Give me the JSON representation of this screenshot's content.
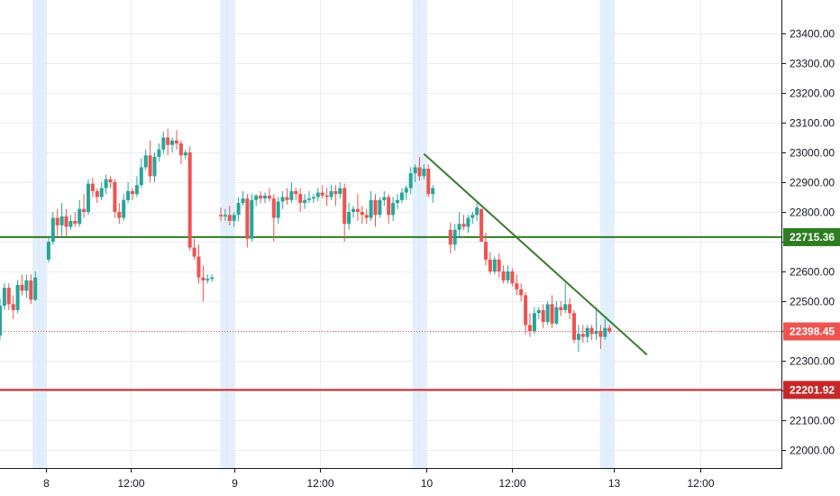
{
  "chart_data": {
    "type": "candlestick",
    "title": "",
    "xlabel": "",
    "ylabel": "",
    "ylim": [
      21900,
      23450
    ],
    "y_ticks": [
      22000,
      22100,
      22200,
      22300,
      22400,
      22500,
      22600,
      22700,
      22800,
      22900,
      23000,
      23100,
      23200,
      23300,
      23400
    ],
    "y_tick_labels": [
      "22000.00",
      "22100.00",
      "22200.00",
      "22300.00",
      "22400.00",
      "22500.00",
      "22600.00",
      "22700.00",
      "22800.00",
      "22900.00",
      "23000.00",
      "23100.00",
      "23200.00",
      "23300.00",
      "23400.00"
    ],
    "x_ticks": [
      {
        "label": "8",
        "t": 10.5
      },
      {
        "label": "12:00",
        "t": 29.5
      },
      {
        "label": "9",
        "t": 53
      },
      {
        "label": "12:00",
        "t": 72.5
      },
      {
        "label": "10",
        "t": 96.5
      },
      {
        "label": "12:00",
        "t": 116
      },
      {
        "label": "13",
        "t": 139
      },
      {
        "label": "12:00",
        "t": 158.5
      }
    ],
    "xlim": [
      0,
      176
    ],
    "session_bands": [
      9,
      51.5,
      95,
      137.5
    ],
    "up_color": "#26a69a",
    "down_color": "#ef5350",
    "candles": [
      [
        0,
        22385,
        22510,
        22370,
        22485
      ],
      [
        1,
        22485,
        22560,
        22470,
        22545
      ],
      [
        2,
        22545,
        22560,
        22470,
        22490
      ],
      [
        3,
        22490,
        22520,
        22440,
        22470
      ],
      [
        4,
        22470,
        22570,
        22460,
        22555
      ],
      [
        5,
        22555,
        22590,
        22520,
        22535
      ],
      [
        6,
        22535,
        22590,
        22510,
        22570
      ],
      [
        7,
        22570,
        22590,
        22490,
        22505
      ],
      [
        8,
        22505,
        22600,
        22500,
        22580
      ],
      [
        11,
        22640,
        22720,
        22630,
        22700
      ],
      [
        12,
        22700,
        22800,
        22690,
        22780
      ],
      [
        13,
        22780,
        22810,
        22720,
        22755
      ],
      [
        14,
        22755,
        22830,
        22720,
        22785
      ],
      [
        15,
        22785,
        22810,
        22720,
        22750
      ],
      [
        16,
        22750,
        22790,
        22740,
        22770
      ],
      [
        17,
        22770,
        22800,
        22750,
        22760
      ],
      [
        18,
        22760,
        22840,
        22750,
        22810
      ],
      [
        19,
        22810,
        22860,
        22780,
        22800
      ],
      [
        20,
        22800,
        22910,
        22790,
        22895
      ],
      [
        21,
        22895,
        22915,
        22850,
        22870
      ],
      [
        22,
        22870,
        22880,
        22830,
        22850
      ],
      [
        23,
        22850,
        22900,
        22840,
        22880
      ],
      [
        24,
        22880,
        22925,
        22860,
        22910
      ],
      [
        25,
        22910,
        22920,
        22880,
        22900
      ],
      [
        26,
        22900,
        22910,
        22780,
        22800
      ],
      [
        27,
        22800,
        22830,
        22760,
        22780
      ],
      [
        28,
        22780,
        22860,
        22770,
        22840
      ],
      [
        29,
        22840,
        22900,
        22830,
        22870
      ],
      [
        30,
        22870,
        22880,
        22840,
        22860
      ],
      [
        31,
        22860,
        22920,
        22850,
        22890
      ],
      [
        32,
        22890,
        22980,
        22880,
        22950
      ],
      [
        33,
        22950,
        23010,
        22940,
        22990
      ],
      [
        34,
        22990,
        23040,
        22900,
        22920
      ],
      [
        35,
        22920,
        23000,
        22900,
        22985
      ],
      [
        36,
        22985,
        23030,
        22970,
        23010
      ],
      [
        37,
        23010,
        23070,
        22995,
        23050
      ],
      [
        38,
        23050,
        23080,
        22990,
        23025
      ],
      [
        39,
        23025,
        23050,
        23000,
        23040
      ],
      [
        40,
        23040,
        23075,
        23010,
        23030
      ],
      [
        41,
        23030,
        23040,
        22960,
        22990
      ],
      [
        42,
        22990,
        23010,
        22980,
        23000
      ],
      [
        43,
        23000,
        23020,
        22670,
        22680
      ],
      [
        44,
        22680,
        22710,
        22640,
        22650
      ],
      [
        45,
        22650,
        22690,
        22560,
        22580
      ],
      [
        46,
        22580,
        22620,
        22500,
        22570
      ],
      [
        47,
        22570,
        22590,
        22560,
        22575
      ],
      [
        48,
        22575,
        22590,
        22565,
        22580
      ],
      [
        50,
        22790,
        22815,
        22770,
        22785
      ],
      [
        51,
        22785,
        22810,
        22770,
        22790
      ],
      [
        52,
        22790,
        22820,
        22755,
        22770
      ],
      [
        53,
        22770,
        22800,
        22750,
        22790
      ],
      [
        54,
        22790,
        22850,
        22770,
        22830
      ],
      [
        55,
        22830,
        22870,
        22820,
        22845
      ],
      [
        56,
        22845,
        22860,
        22680,
        22710
      ],
      [
        57,
        22710,
        22860,
        22700,
        22840
      ],
      [
        58,
        22840,
        22860,
        22820,
        22855
      ],
      [
        59,
        22855,
        22870,
        22830,
        22845
      ],
      [
        60,
        22845,
        22865,
        22830,
        22855
      ],
      [
        61,
        22855,
        22880,
        22835,
        22845
      ],
      [
        62,
        22845,
        22860,
        22700,
        22780
      ],
      [
        63,
        22780,
        22850,
        22760,
        22835
      ],
      [
        64,
        22835,
        22870,
        22810,
        22850
      ],
      [
        65,
        22850,
        22880,
        22825,
        22840
      ],
      [
        66,
        22840,
        22900,
        22830,
        22870
      ],
      [
        67,
        22870,
        22880,
        22840,
        22860
      ],
      [
        68,
        22860,
        22880,
        22800,
        22830
      ],
      [
        69,
        22830,
        22860,
        22810,
        22840
      ],
      [
        70,
        22840,
        22870,
        22830,
        22845
      ],
      [
        71,
        22845,
        22860,
        22830,
        22850
      ],
      [
        72,
        22850,
        22880,
        22835,
        22865
      ],
      [
        73,
        22865,
        22890,
        22845,
        22855
      ],
      [
        74,
        22855,
        22880,
        22820,
        22850
      ],
      [
        75,
        22850,
        22890,
        22840,
        22870
      ],
      [
        76,
        22870,
        22890,
        22820,
        22860
      ],
      [
        77,
        22860,
        22900,
        22845,
        22880
      ],
      [
        78,
        22880,
        22895,
        22700,
        22760
      ],
      [
        79,
        22760,
        22830,
        22740,
        22800
      ],
      [
        80,
        22800,
        22820,
        22780,
        22810
      ],
      [
        81,
        22810,
        22860,
        22770,
        22800
      ],
      [
        82,
        22800,
        22820,
        22760,
        22790
      ],
      [
        83,
        22790,
        22810,
        22760,
        22780
      ],
      [
        84,
        22780,
        22870,
        22770,
        22840
      ],
      [
        85,
        22840,
        22860,
        22750,
        22790
      ],
      [
        86,
        22790,
        22850,
        22780,
        22840
      ],
      [
        87,
        22840,
        22870,
        22820,
        22850
      ],
      [
        88,
        22850,
        22860,
        22760,
        22790
      ],
      [
        89,
        22790,
        22850,
        22770,
        22830
      ],
      [
        90,
        22830,
        22860,
        22810,
        22840
      ],
      [
        91,
        22840,
        22880,
        22830,
        22865
      ],
      [
        92,
        22865,
        22890,
        22840,
        22880
      ],
      [
        93,
        22880,
        22950,
        22860,
        22930
      ],
      [
        94,
        22930,
        22960,
        22900,
        22950
      ],
      [
        95,
        22950,
        22985,
        22905,
        22920
      ],
      [
        96,
        22920,
        22960,
        22910,
        22945
      ],
      [
        97,
        22945,
        22960,
        22850,
        22860
      ],
      [
        98,
        22860,
        22890,
        22830,
        22880
      ],
      [
        102,
        22740,
        22765,
        22660,
        22690
      ],
      [
        103,
        22690,
        22760,
        22670,
        22740
      ],
      [
        104,
        22740,
        22800,
        22720,
        22760
      ],
      [
        105,
        22760,
        22790,
        22740,
        22750
      ],
      [
        106,
        22750,
        22790,
        22730,
        22780
      ],
      [
        107,
        22780,
        22800,
        22760,
        22790
      ],
      [
        108,
        22790,
        22830,
        22770,
        22815
      ],
      [
        109,
        22810,
        22810,
        22700,
        22700
      ],
      [
        110,
        22700,
        22730,
        22620,
        22640
      ],
      [
        111,
        22640,
        22665,
        22590,
        22600
      ],
      [
        112,
        22600,
        22650,
        22590,
        22640
      ],
      [
        113,
        22640,
        22660,
        22580,
        22600
      ],
      [
        114,
        22600,
        22620,
        22560,
        22570
      ],
      [
        115,
        22570,
        22620,
        22560,
        22600
      ],
      [
        116,
        22600,
        22610,
        22550,
        22560
      ],
      [
        117,
        22560,
        22590,
        22520,
        22540
      ],
      [
        118,
        22540,
        22560,
        22500,
        22520
      ],
      [
        119,
        22520,
        22530,
        22390,
        22420
      ],
      [
        120,
        22420,
        22460,
        22380,
        22400
      ],
      [
        121,
        22400,
        22480,
        22390,
        22460
      ],
      [
        122,
        22460,
        22480,
        22440,
        22470
      ],
      [
        123,
        22470,
        22490,
        22410,
        22430
      ],
      [
        124,
        22430,
        22500,
        22420,
        22490
      ],
      [
        125,
        22490,
        22520,
        22410,
        22425
      ],
      [
        126,
        22425,
        22500,
        22420,
        22480
      ],
      [
        127,
        22480,
        22500,
        22450,
        22470
      ],
      [
        128,
        22470,
        22560,
        22460,
        22490
      ],
      [
        129,
        22490,
        22510,
        22440,
        22460
      ],
      [
        130,
        22460,
        22470,
        22360,
        22370
      ],
      [
        131,
        22370,
        22420,
        22330,
        22390
      ],
      [
        132,
        22390,
        22420,
        22360,
        22380
      ],
      [
        133,
        22380,
        22420,
        22360,
        22410
      ],
      [
        134,
        22410,
        22420,
        22370,
        22390
      ],
      [
        135,
        22390,
        22480,
        22370,
        22400
      ],
      [
        136,
        22400,
        22420,
        22340,
        22380
      ],
      [
        137,
        22380,
        22440,
        22370,
        22410
      ],
      [
        138,
        22410,
        22420,
        22390,
        22398.45
      ]
    ],
    "horizontal_lines": [
      {
        "value": 22715.36,
        "label": "22715.36",
        "color": "#2e7d22"
      },
      {
        "value": 22201.92,
        "label": "22201.92",
        "color": "#c62828"
      }
    ],
    "last_price": {
      "value": 22398.45,
      "label": "22398.45",
      "color": "#ef5350"
    },
    "trendline": {
      "from": [
        96,
        22995
      ],
      "to": [
        146.5,
        22320
      ],
      "color": "#3a7d2c"
    }
  }
}
